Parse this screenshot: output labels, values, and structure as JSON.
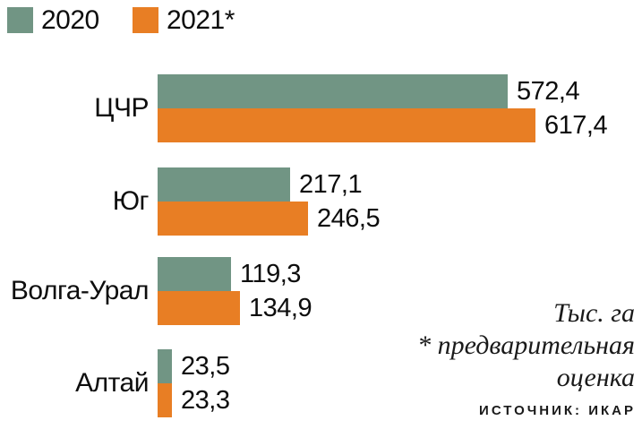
{
  "chart_data": {
    "type": "bar",
    "orientation": "horizontal",
    "title": "",
    "unit": "Тыс. га",
    "categories": [
      "ЦЧР",
      "Юг",
      "Волга-Урал",
      "Алтай"
    ],
    "series": [
      {
        "name": "2020",
        "color": "#719584",
        "values": [
          572.4,
          217.1,
          119.3,
          23.5
        ],
        "labels": [
          "572,4",
          "217,1",
          "119,3",
          "23,5"
        ]
      },
      {
        "name": "2021*",
        "color": "#e87e24",
        "values": [
          617.4,
          246.5,
          134.9,
          23.3
        ],
        "labels": [
          "617,4",
          "246,5",
          "134,9",
          "23,3"
        ]
      }
    ],
    "xlim": [
      0,
      640
    ],
    "grid": false,
    "legend_position": "top-left",
    "value_labels": true
  },
  "annotation": {
    "lines": [
      "Тыс. га",
      "* предварительная",
      "оценка"
    ]
  },
  "source": {
    "label": "ИСТОЧНИК: ИКАР"
  }
}
